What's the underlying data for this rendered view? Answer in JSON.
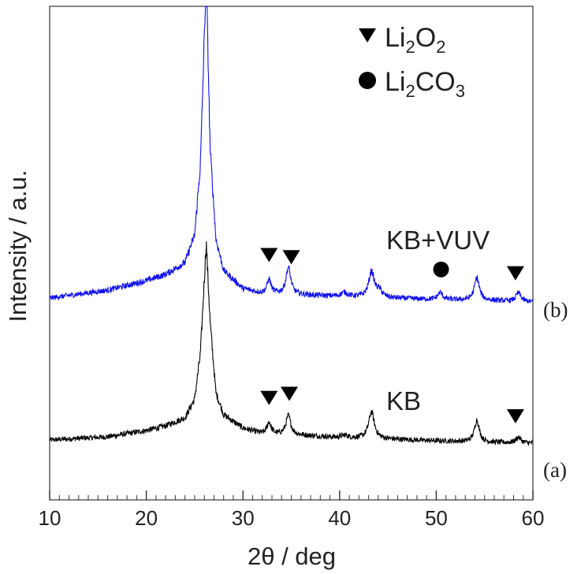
{
  "chart_data": {
    "type": "line",
    "xlabel": "2θ / deg",
    "ylabel": "Intensity / a.u.",
    "xlim": [
      10,
      60
    ],
    "xticks": [
      "10",
      "20",
      "30",
      "40",
      "50",
      "60"
    ],
    "yticks_shown": false,
    "legend": {
      "position": "top-right",
      "entries": [
        {
          "marker": "triangle-down",
          "label_main": "Li",
          "sub1": "2",
          "label_mid": "O",
          "sub2": "2",
          "label_tail": ""
        },
        {
          "marker": "circle",
          "label_main": "Li",
          "sub1": "2",
          "label_mid": "CO",
          "sub2": "3",
          "label_tail": ""
        }
      ]
    },
    "series": [
      {
        "name": "KB",
        "panel": "(a)",
        "color": "#000000",
        "offset": 0,
        "baseline": [
          [
            10,
            10
          ],
          [
            16,
            14
          ],
          [
            20,
            22
          ],
          [
            22,
            28
          ],
          [
            24,
            38
          ],
          [
            25,
            62
          ],
          [
            25.6,
            120
          ],
          [
            26.2,
            260
          ],
          [
            26.6,
            160
          ],
          [
            27.2,
            70
          ],
          [
            28,
            42
          ],
          [
            30,
            25
          ],
          [
            32,
            18
          ],
          [
            36,
            16
          ],
          [
            40,
            13
          ],
          [
            45,
            11
          ],
          [
            50,
            9
          ],
          [
            55,
            7
          ],
          [
            60,
            6
          ]
        ],
        "peaks": [
          {
            "x": 32.7,
            "h": 15,
            "w": 0.25
          },
          {
            "x": 34.7,
            "h": 24,
            "w": 0.3
          },
          {
            "x": 40.5,
            "h": 3,
            "w": 0.4
          },
          {
            "x": 43.3,
            "h": 34,
            "w": 0.35
          },
          {
            "x": 54.2,
            "h": 28,
            "w": 0.3
          },
          {
            "x": 58.5,
            "h": 7,
            "w": 0.3
          }
        ],
        "markers": [
          {
            "type": "triangle-down",
            "x": 32.7
          },
          {
            "type": "triangle-down",
            "x": 34.8
          },
          {
            "type": "triangle-down",
            "x": 58.2
          }
        ]
      },
      {
        "name": "KB+VUV",
        "panel": "(b)",
        "color": "#1010ee",
        "offset": 180,
        "baseline": [
          [
            10,
            10
          ],
          [
            16,
            20
          ],
          [
            20,
            32
          ],
          [
            22,
            40
          ],
          [
            24,
            55
          ],
          [
            25,
            90
          ],
          [
            25.6,
            180
          ],
          [
            26.2,
            420
          ],
          [
            26.6,
            200
          ],
          [
            27.2,
            85
          ],
          [
            28,
            45
          ],
          [
            30,
            22
          ],
          [
            32,
            16
          ],
          [
            36,
            14
          ],
          [
            40,
            12
          ],
          [
            45,
            10
          ],
          [
            50,
            8
          ],
          [
            55,
            7
          ],
          [
            60,
            5
          ]
        ],
        "peaks": [
          {
            "x": 32.7,
            "h": 18,
            "w": 0.25
          },
          {
            "x": 34.7,
            "h": 34,
            "w": 0.3
          },
          {
            "x": 40.5,
            "h": 5,
            "w": 0.4
          },
          {
            "x": 43.3,
            "h": 32,
            "w": 0.35
          },
          {
            "x": 44.1,
            "h": 8,
            "w": 0.35
          },
          {
            "x": 50.4,
            "h": 9,
            "w": 0.3
          },
          {
            "x": 54.2,
            "h": 29,
            "w": 0.3
          },
          {
            "x": 58.5,
            "h": 11,
            "w": 0.3
          }
        ],
        "markers": [
          {
            "type": "triangle-down",
            "x": 32.7
          },
          {
            "type": "triangle-down",
            "x": 35.0
          },
          {
            "type": "circle",
            "x": 50.5
          },
          {
            "type": "triangle-down",
            "x": 58.2
          }
        ]
      }
    ]
  }
}
